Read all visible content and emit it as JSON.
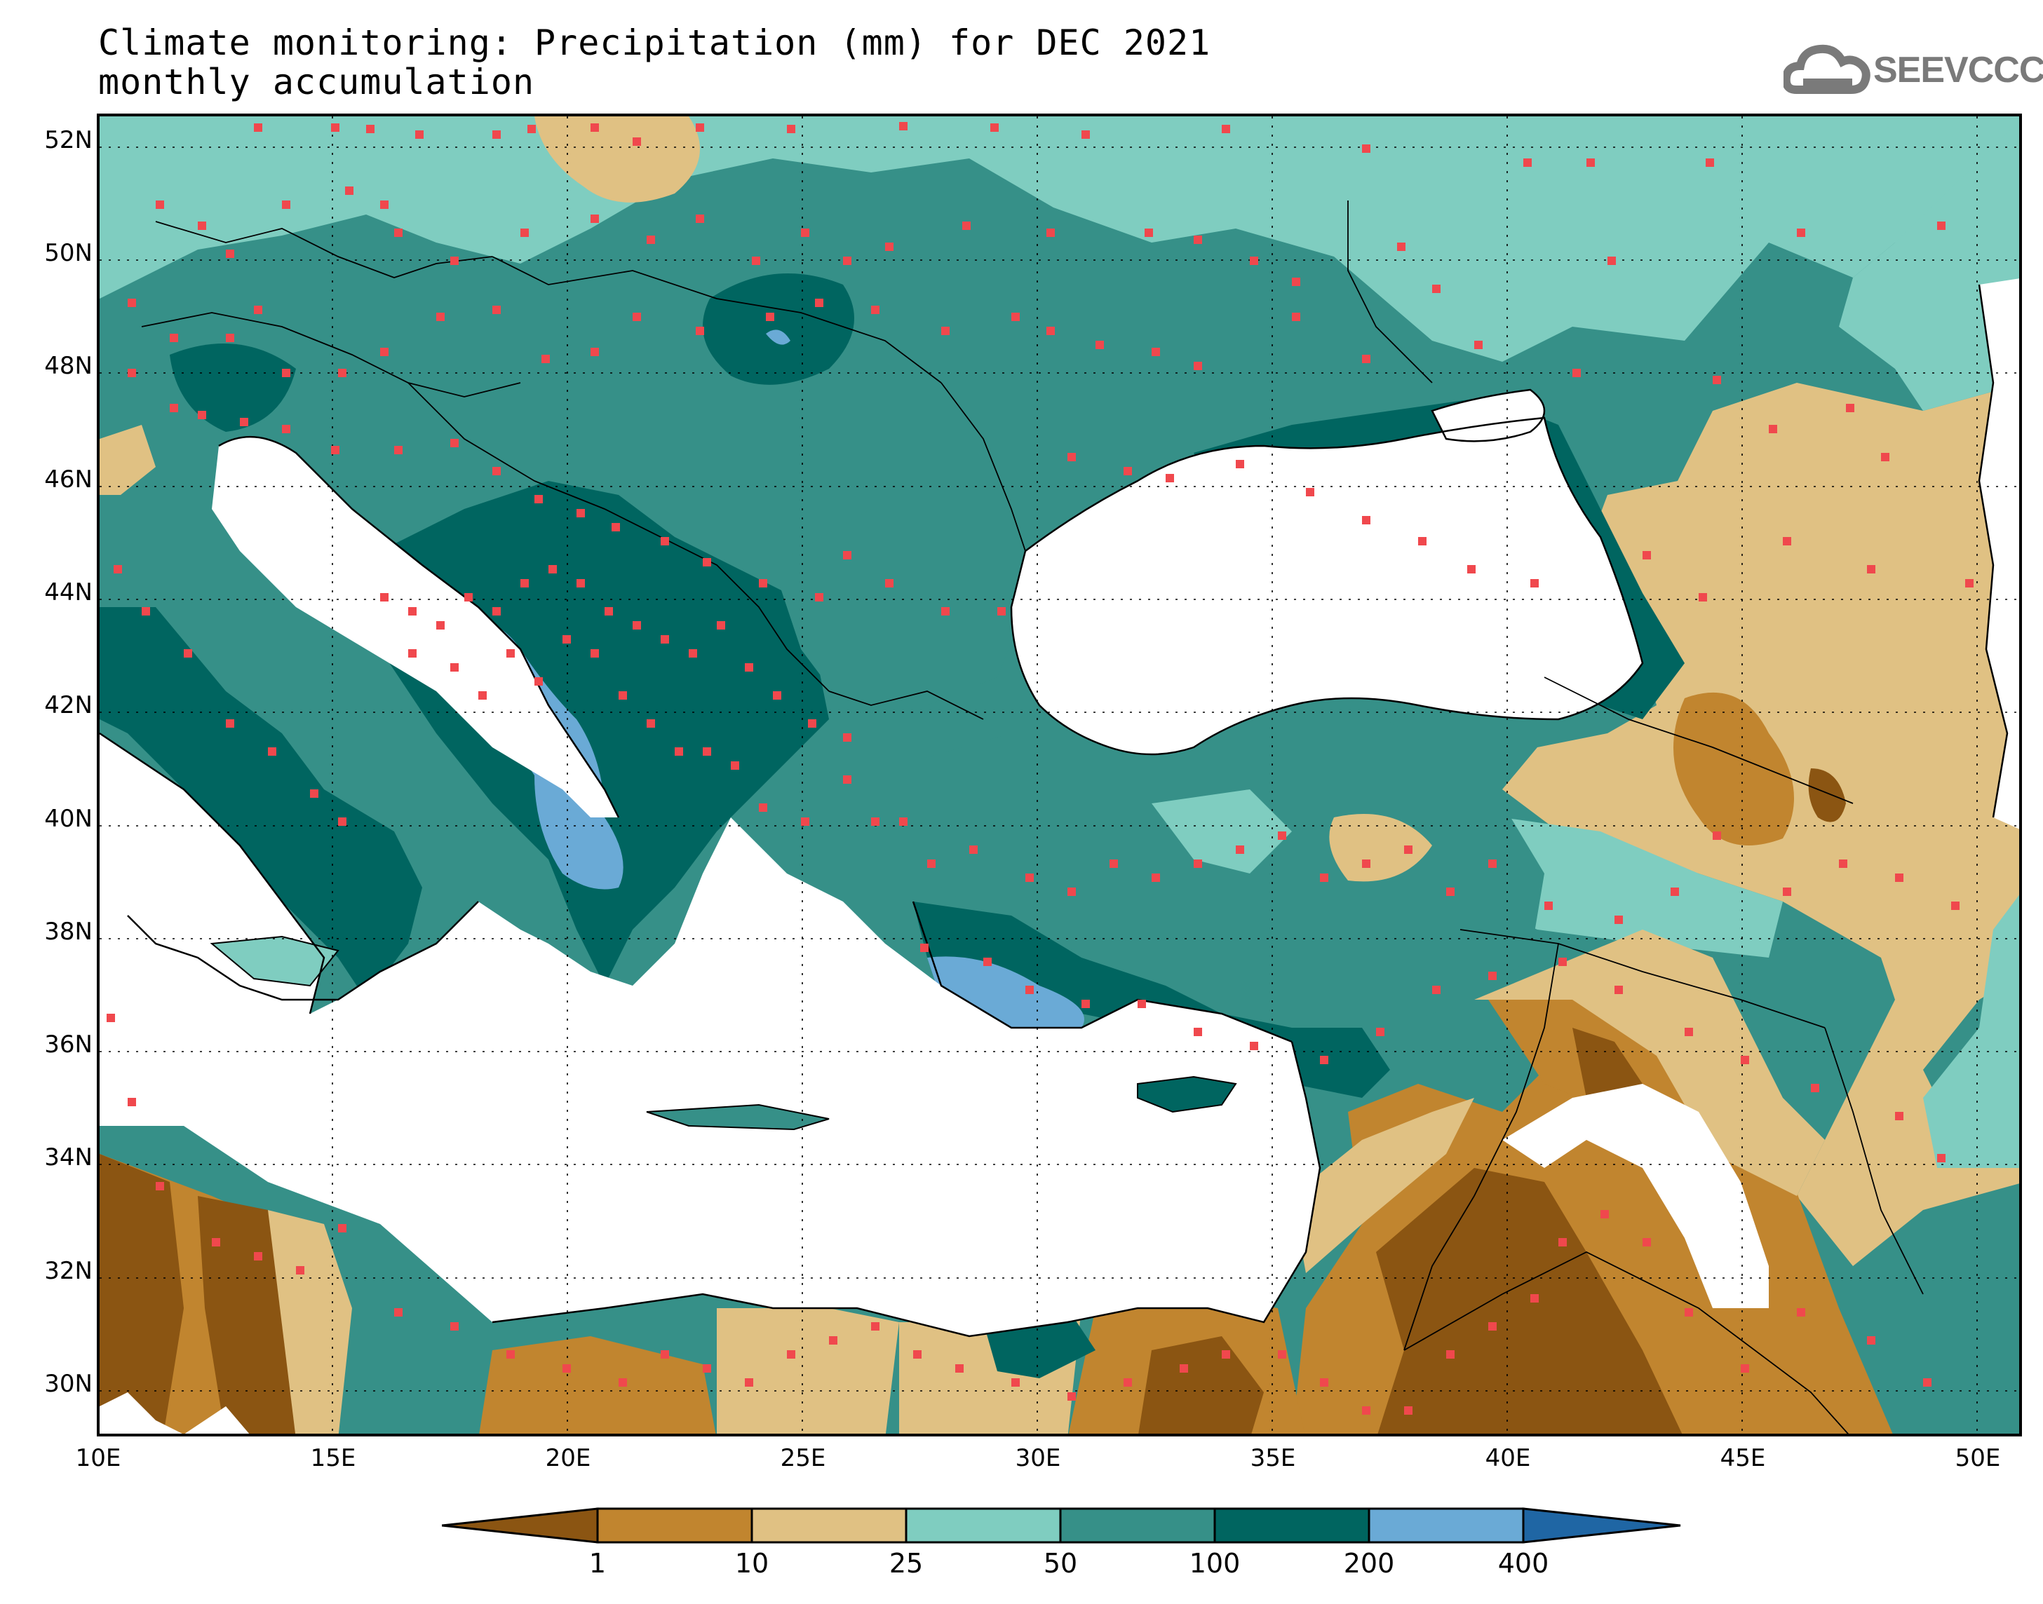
{
  "title_line1": "Climate monitoring: Precipitation (mm) for DEC 2021",
  "title_line2": "monthly accumulation",
  "logo_text": "SEEVCCC",
  "logo_icon": "cloud-icon",
  "map": {
    "latitude_labels": [
      "52N",
      "50N",
      "48N",
      "46N",
      "44N",
      "42N",
      "40N",
      "38N",
      "36N",
      "34N",
      "32N",
      "30N"
    ],
    "longitude_labels": [
      "10E",
      "15E",
      "20E",
      "25E",
      "30E",
      "35E",
      "40E",
      "45E",
      "50E"
    ],
    "lat_range": [
      29.1,
      52.5
    ],
    "lon_range": [
      10,
      51
    ],
    "sea_color": "#ffffff",
    "station_marker_color": "#f0484d"
  },
  "colorbar": {
    "levels": [
      "1",
      "10",
      "25",
      "50",
      "100",
      "200",
      "400"
    ],
    "colors": [
      "#8b5512",
      "#c1852f",
      "#e0c183",
      "#7fcdc0",
      "#369088",
      "#006560",
      "#6aaad6",
      "#1f66a4"
    ],
    "extend": "both"
  }
}
